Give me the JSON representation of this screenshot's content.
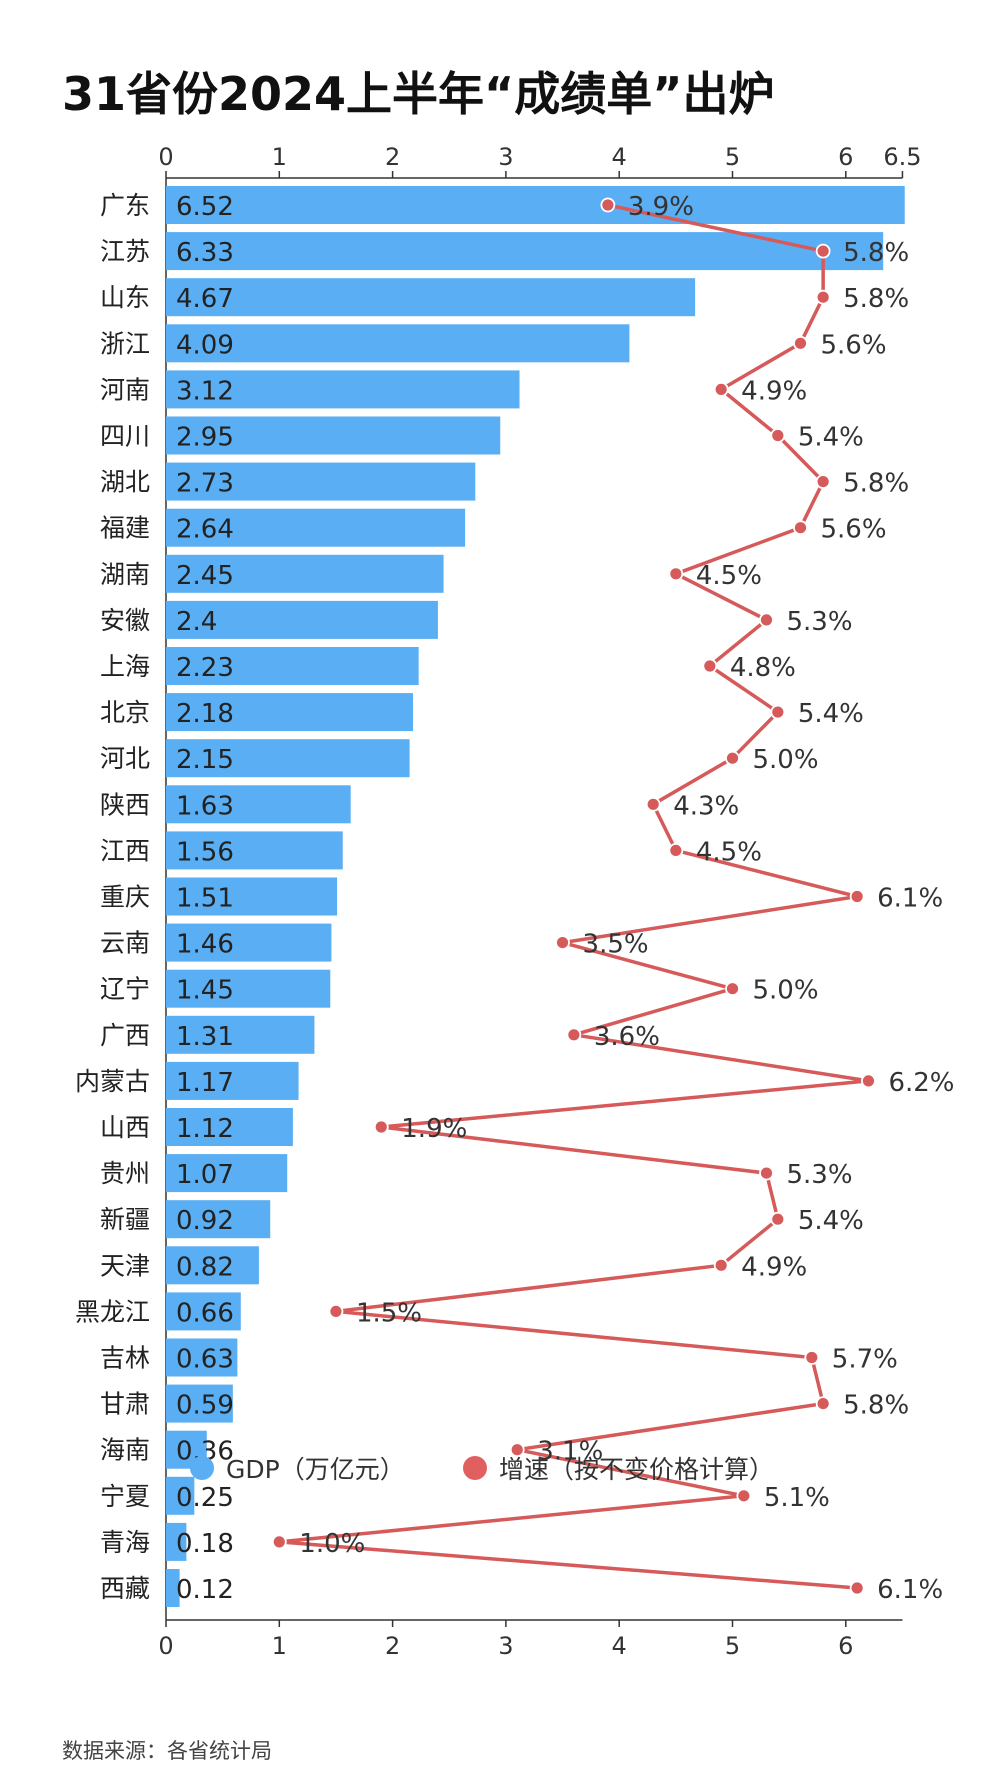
{
  "title": "31省份2024上半年“成绩单”出炉",
  "source": "数据来源：各省统计局",
  "colors": {
    "bar": "#5aaef3",
    "line": "#d65a5a",
    "point_fill": "#d65a5a"
  },
  "legend": [
    {
      "label": "GDP（万亿元）",
      "color": "#5aaef3"
    },
    {
      "label": "增速（按不变价格计算）",
      "color": "#e06060"
    }
  ],
  "chart_data": {
    "type": "bar",
    "orientation": "horizontal",
    "title": "31省份2024上半年“成绩单”出炉",
    "categories": [
      "广东",
      "江苏",
      "山东",
      "浙江",
      "河南",
      "四川",
      "湖北",
      "福建",
      "湖南",
      "安徽",
      "上海",
      "北京",
      "河北",
      "陕西",
      "江西",
      "重庆",
      "云南",
      "辽宁",
      "广西",
      "内蒙古",
      "山西",
      "贵州",
      "新疆",
      "天津",
      "黑龙江",
      "吉林",
      "甘肃",
      "海南",
      "宁夏",
      "青海",
      "西藏"
    ],
    "series": [
      {
        "name": "GDP（万亿元）",
        "type": "bar",
        "values": [
          6.52,
          6.33,
          4.67,
          4.09,
          3.12,
          2.95,
          2.73,
          2.64,
          2.45,
          2.4,
          2.23,
          2.18,
          2.15,
          1.63,
          1.56,
          1.51,
          1.46,
          1.45,
          1.31,
          1.17,
          1.12,
          1.07,
          0.92,
          0.82,
          0.66,
          0.63,
          0.59,
          0.36,
          0.25,
          0.18,
          0.12
        ],
        "labels": [
          "6.52",
          "6.33",
          "4.67",
          "4.09",
          "3.12",
          "2.95",
          "2.73",
          "2.64",
          "2.45",
          "2.4",
          "2.23",
          "2.18",
          "2.15",
          "1.63",
          "1.56",
          "1.51",
          "1.46",
          "1.45",
          "1.31",
          "1.17",
          "1.12",
          "1.07",
          "0.92",
          "0.82",
          "0.66",
          "0.63",
          "0.59",
          "0.36",
          "0.25",
          "0.18",
          "0.12"
        ]
      },
      {
        "name": "增速（按不变价格计算）",
        "type": "line",
        "values": [
          3.9,
          5.8,
          5.8,
          5.6,
          4.9,
          5.4,
          5.8,
          5.6,
          4.5,
          5.3,
          4.8,
          5.4,
          5.0,
          4.3,
          4.5,
          6.1,
          3.5,
          5.0,
          3.6,
          6.2,
          1.9,
          5.3,
          5.4,
          4.9,
          1.5,
          5.7,
          5.8,
          3.1,
          5.1,
          1.0,
          6.1
        ],
        "labels": [
          "3.9%",
          "5.8%",
          "5.8%",
          "5.6%",
          "4.9%",
          "5.4%",
          "5.8%",
          "5.6%",
          "4.5%",
          "5.3%",
          "4.8%",
          "5.4%",
          "5.0%",
          "4.3%",
          "4.5%",
          "6.1%",
          "3.5%",
          "5.0%",
          "3.6%",
          "6.2%",
          "1.9%",
          "5.3%",
          "5.4%",
          "4.9%",
          "1.5%",
          "5.7%",
          "5.8%",
          "3.1%",
          "5.1%",
          "1.0%",
          "6.1%"
        ]
      }
    ],
    "xlim": [
      0,
      6.5
    ],
    "x_ticks_top": [
      "0",
      "1",
      "2",
      "3",
      "4",
      "5",
      "6",
      "6.5"
    ],
    "x_ticks_bottom": [
      "0",
      "1",
      "2",
      "3",
      "4",
      "5",
      "6"
    ],
    "grid": false,
    "legend_position": "bottom"
  }
}
